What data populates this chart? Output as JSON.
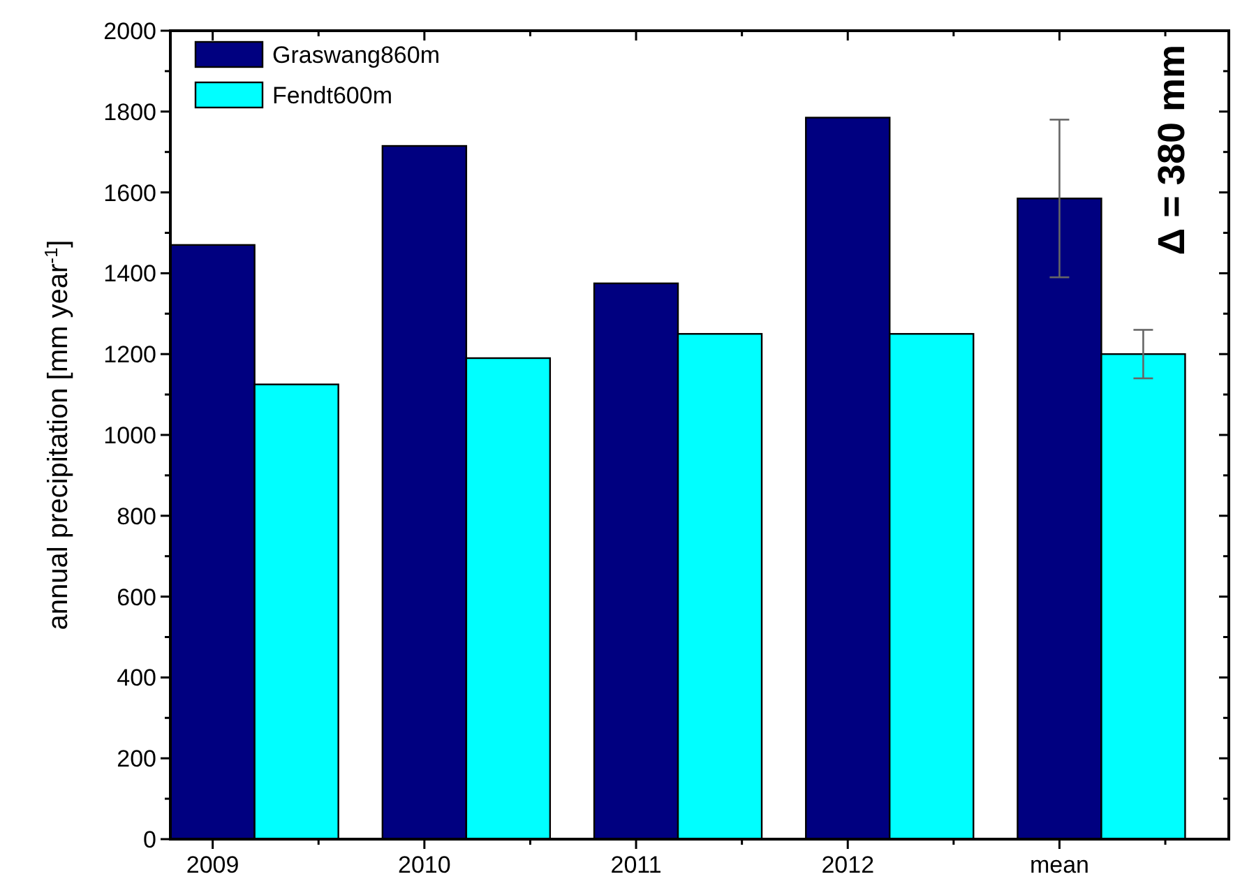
{
  "chart_data": {
    "type": "bar",
    "ylabel": "annual precipitation [mm year$^{-1}$]",
    "categories": [
      "2009",
      "2010",
      "2011",
      "2012",
      "mean"
    ],
    "series": [
      {
        "name": "Graswang860m",
        "color": "#000080",
        "values": [
          1470,
          1715,
          1375,
          1785,
          1585
        ],
        "errors": [
          null,
          null,
          null,
          null,
          195
        ]
      },
      {
        "name": "Fendt600m",
        "color": "#00ffff",
        "values": [
          1125,
          1190,
          1250,
          1250,
          1200
        ],
        "errors": [
          null,
          null,
          null,
          null,
          60
        ]
      }
    ],
    "ylim": [
      0,
      2000
    ],
    "yticks": [
      0,
      200,
      400,
      600,
      800,
      1000,
      1200,
      1400,
      1600,
      1800,
      2000
    ],
    "annotations": [
      "Δ = 380 mm"
    ],
    "legend": "top left",
    "grid": false
  }
}
